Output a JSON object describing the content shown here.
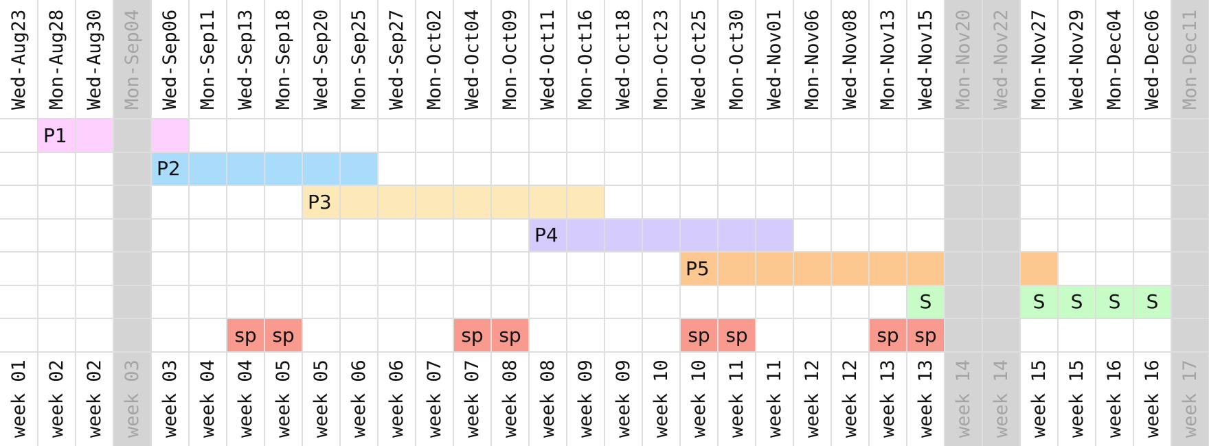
{
  "columns": [
    {
      "date": "Wed-Aug23",
      "week": "week 01",
      "holiday": false
    },
    {
      "date": "Mon-Aug28",
      "week": "week 02",
      "holiday": false
    },
    {
      "date": "Wed-Aug30",
      "week": "week 02",
      "holiday": false
    },
    {
      "date": "Mon-Sep04",
      "week": "week 03",
      "holiday": true
    },
    {
      "date": "Wed-Sep06",
      "week": "week 03",
      "holiday": false
    },
    {
      "date": "Mon-Sep11",
      "week": "week 04",
      "holiday": false
    },
    {
      "date": "Wed-Sep13",
      "week": "week 04",
      "holiday": false
    },
    {
      "date": "Mon-Sep18",
      "week": "week 05",
      "holiday": false
    },
    {
      "date": "Wed-Sep20",
      "week": "week 05",
      "holiday": false
    },
    {
      "date": "Mon-Sep25",
      "week": "week 06",
      "holiday": false
    },
    {
      "date": "Wed-Sep27",
      "week": "week 06",
      "holiday": false
    },
    {
      "date": "Mon-Oct02",
      "week": "week 07",
      "holiday": false
    },
    {
      "date": "Wed-Oct04",
      "week": "week 07",
      "holiday": false
    },
    {
      "date": "Mon-Oct09",
      "week": "week 08",
      "holiday": false
    },
    {
      "date": "Wed-Oct11",
      "week": "week 08",
      "holiday": false
    },
    {
      "date": "Mon-Oct16",
      "week": "week 09",
      "holiday": false
    },
    {
      "date": "Wed-Oct18",
      "week": "week 09",
      "holiday": false
    },
    {
      "date": "Mon-Oct23",
      "week": "week 10",
      "holiday": false
    },
    {
      "date": "Wed-Oct25",
      "week": "week 10",
      "holiday": false
    },
    {
      "date": "Mon-Oct30",
      "week": "week 11",
      "holiday": false
    },
    {
      "date": "Wed-Nov01",
      "week": "week 11",
      "holiday": false
    },
    {
      "date": "Mon-Nov06",
      "week": "week 12",
      "holiday": false
    },
    {
      "date": "Wed-Nov08",
      "week": "week 12",
      "holiday": false
    },
    {
      "date": "Mon-Nov13",
      "week": "week 13",
      "holiday": false
    },
    {
      "date": "Wed-Nov15",
      "week": "week 13",
      "holiday": false
    },
    {
      "date": "Mon-Nov20",
      "week": "week 14",
      "holiday": true
    },
    {
      "date": "Wed-Nov22",
      "week": "week 14",
      "holiday": true
    },
    {
      "date": "Mon-Nov27",
      "week": "week 15",
      "holiday": false
    },
    {
      "date": "Wed-Nov29",
      "week": "week 15",
      "holiday": false
    },
    {
      "date": "Mon-Dec04",
      "week": "week 16",
      "holiday": false
    },
    {
      "date": "Wed-Dec06",
      "week": "week 16",
      "holiday": false
    },
    {
      "date": "Mon-Dec11",
      "week": "week 17",
      "holiday": true
    }
  ],
  "tasks": [
    {
      "label": "P1",
      "row": 0,
      "cells": [
        1,
        2,
        4
      ],
      "color": "#fdd0fd"
    },
    {
      "label": "P2",
      "row": 1,
      "cells": [
        4,
        5,
        6,
        7,
        8,
        9
      ],
      "color": "#a9dcfb"
    },
    {
      "label": "P3",
      "row": 2,
      "cells": [
        8,
        9,
        10,
        11,
        12,
        13,
        14,
        15
      ],
      "color": "#fde9b8"
    },
    {
      "label": "P4",
      "row": 3,
      "cells": [
        14,
        15,
        16,
        17,
        18,
        19,
        20
      ],
      "color": "#d6cbfd"
    },
    {
      "label": "P5",
      "row": 4,
      "cells": [
        18,
        19,
        20,
        21,
        22,
        23,
        24,
        27
      ],
      "color": "#fdc790"
    },
    {
      "label": "S",
      "row": 5,
      "cells": [
        24,
        27,
        28,
        29,
        30
      ],
      "color": "#c7fcc6"
    }
  ],
  "sp_row": {
    "label": "sp",
    "row": 6,
    "cells": [
      6,
      7,
      12,
      13,
      18,
      19,
      23,
      24
    ],
    "color": "#f89a8e"
  }
}
